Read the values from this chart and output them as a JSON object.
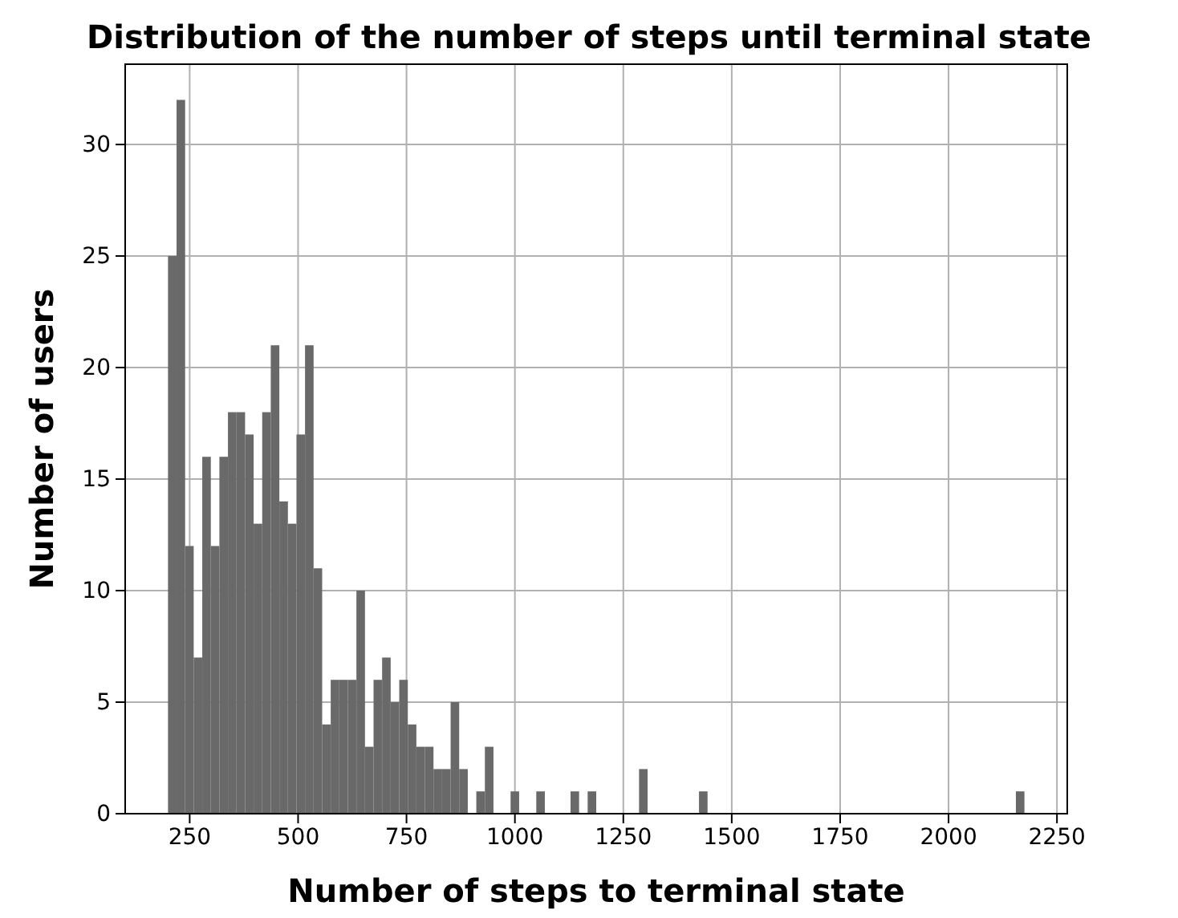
{
  "chart_data": {
    "type": "histogram",
    "title": "Distribution of the number of steps until terminal state",
    "xlabel": "Number of steps to terminal state",
    "ylabel": "Number of users",
    "color": "#696969",
    "bins": [
      200,
      219.75,
      239.5,
      259.25,
      279,
      298.75,
      318.5,
      338.25,
      358,
      377.75,
      397.5,
      417.25,
      437,
      456.75,
      476.5,
      496.25,
      516,
      535.75,
      555.5,
      575.25,
      595,
      614.75,
      634.5,
      654.25,
      674,
      693.75,
      713.5,
      733.25,
      753,
      772.75,
      792.5,
      812.25,
      832,
      851.75,
      871.5,
      891.25,
      911,
      930.75,
      950.5,
      970.25,
      990,
      1009.75,
      1029.5,
      1049.25,
      1069,
      1088.75,
      1108.5,
      1128.25,
      1148,
      1167.75,
      1187.5,
      1207.25,
      1227,
      1246.75,
      1266.5,
      1286.25,
      1306,
      1325.75,
      1345.5,
      1365.25,
      1385,
      1404.75,
      1424.5,
      1444.25,
      1464,
      1483.75,
      1503.5,
      1523.25,
      1543,
      1562.75,
      1582.5,
      1602.25,
      1622,
      1641.75,
      1661.5,
      1681.25,
      1701,
      1720.75,
      1740.5,
      1760.25,
      1780,
      1799.75,
      1819.5,
      1839.25,
      1859,
      1878.75,
      1898.5,
      1918.25,
      1938,
      1957.75,
      1977.5,
      1997.25,
      2017,
      2036.75,
      2056.5,
      2076.25,
      2096,
      2115.75,
      2135.5,
      2155.25,
      2175
    ],
    "values": [
      25,
      32,
      12,
      7,
      16,
      12,
      16,
      18,
      18,
      17,
      13,
      18,
      21,
      14,
      13,
      17,
      21,
      11,
      4,
      6,
      6,
      6,
      10,
      3,
      6,
      7,
      5,
      6,
      4,
      3,
      3,
      2,
      2,
      5,
      2,
      0,
      1,
      3,
      0,
      0,
      1,
      0,
      0,
      1,
      0,
      0,
      0,
      1,
      0,
      1,
      0,
      0,
      0,
      0,
      0,
      2,
      0,
      0,
      0,
      0,
      0,
      0,
      1,
      0,
      0,
      0,
      0,
      0,
      0,
      0,
      0,
      0,
      0,
      0,
      0,
      0,
      0,
      0,
      0,
      0,
      0,
      0,
      0,
      0,
      0,
      0,
      0,
      0,
      0,
      0,
      0,
      0,
      0,
      0,
      0,
      0,
      0,
      0,
      0,
      1
    ],
    "xlim": [
      101.25,
      2273.75
    ],
    "xticks": [
      250,
      500,
      750,
      1000,
      1250,
      1500,
      1750,
      2000,
      2250
    ],
    "ylim": [
      0,
      33.6
    ],
    "yticks": [
      0,
      5,
      10,
      15,
      20,
      25,
      30
    ],
    "grid": true
  }
}
